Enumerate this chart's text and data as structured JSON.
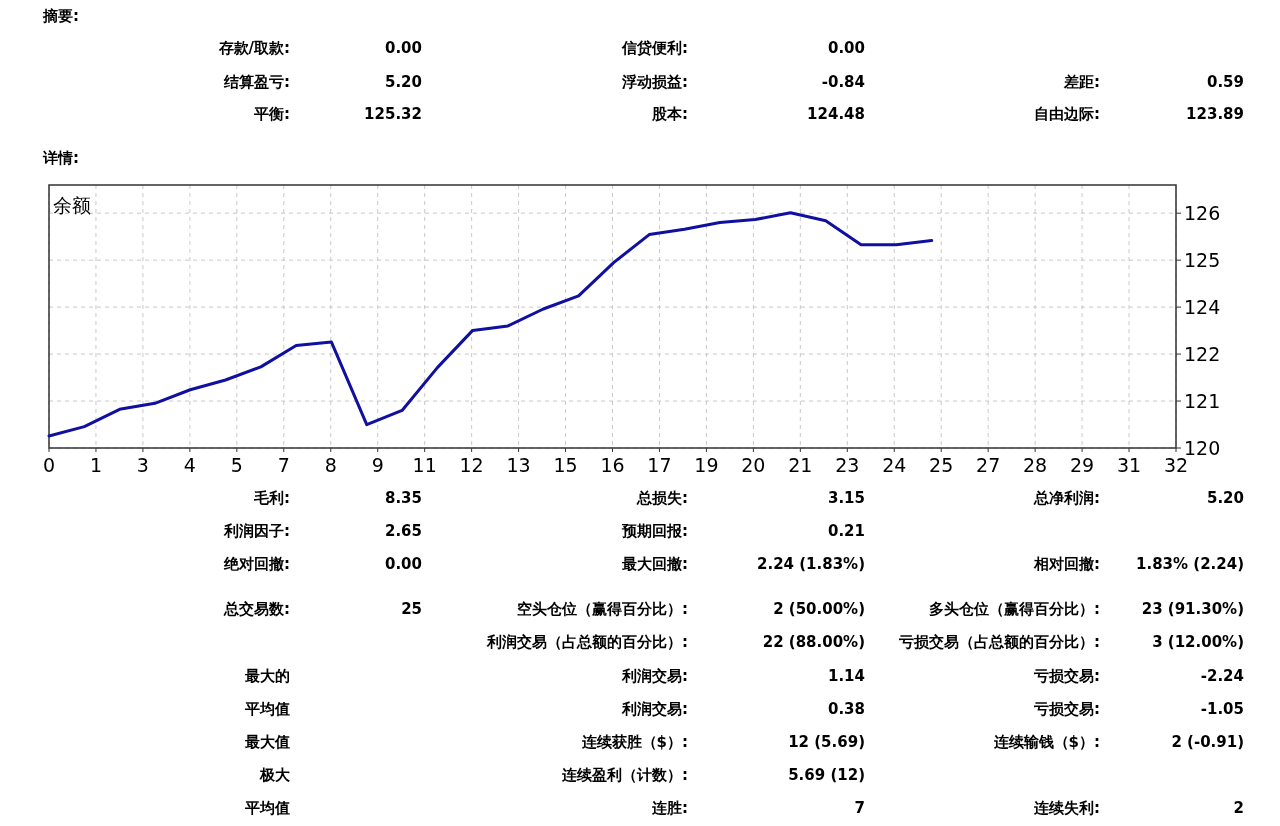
{
  "chart_data": {
    "type": "line",
    "title": "余额",
    "x": [
      0,
      1,
      2,
      3,
      4,
      5,
      6,
      7,
      8,
      9,
      10,
      11,
      12,
      13,
      14,
      15,
      16,
      17,
      18,
      19,
      20,
      21,
      22,
      23,
      24,
      25
    ],
    "series": [
      {
        "color": "#1010a0",
        "values": [
          120.12,
          120.37,
          120.83,
          120.99,
          121.35,
          121.61,
          121.96,
          122.53,
          122.62,
          120.42,
          120.8,
          121.94,
          122.93,
          123.05,
          123.5,
          123.85,
          124.74,
          125.48,
          125.62,
          125.8,
          125.88,
          126.06,
          125.85,
          125.21,
          125.21,
          125.32
        ]
      }
    ],
    "xlim": [
      0,
      31.92
    ],
    "xticks": [
      0,
      {
        "value": 1.33,
        "label": "1"
      },
      {
        "value": 2.66,
        "label": "3"
      },
      {
        "value": 3.99,
        "label": "4"
      },
      {
        "value": 5.32,
        "label": "5"
      },
      {
        "value": 6.65,
        "label": "7"
      },
      {
        "value": 7.98,
        "label": "8"
      },
      {
        "value": 9.31,
        "label": "9"
      },
      {
        "value": 10.64,
        "label": "11"
      },
      {
        "value": 11.97,
        "label": "12"
      },
      {
        "value": 13.3,
        "label": "13"
      },
      {
        "value": 14.63,
        "label": "15"
      },
      {
        "value": 15.96,
        "label": "16"
      },
      {
        "value": 17.29,
        "label": "17"
      },
      {
        "value": 18.62,
        "label": "19"
      },
      {
        "value": 19.95,
        "label": "20"
      },
      {
        "value": 21.28,
        "label": "21"
      },
      {
        "value": 22.61,
        "label": "23"
      },
      {
        "value": 23.94,
        "label": "24"
      },
      {
        "value": 25.27,
        "label": "25"
      },
      {
        "value": 26.6,
        "label": "27"
      },
      {
        "value": 27.93,
        "label": "28"
      },
      {
        "value": 29.26,
        "label": "29"
      },
      {
        "value": 30.59,
        "label": "31"
      },
      {
        "value": 31.92,
        "label": "32"
      }
    ],
    "ylim": [
      119.8,
      126.8
    ],
    "yticks": [
      {
        "value": 119.8,
        "label": "120"
      },
      {
        "value": 121.05,
        "label": "121"
      },
      {
        "value": 122.3,
        "label": "122"
      },
      {
        "value": 123.55,
        "label": "124"
      },
      {
        "value": 124.8,
        "label": "125"
      },
      {
        "value": 126.05,
        "label": "126"
      }
    ],
    "grid": true,
    "line_style": "solid",
    "marker": "none",
    "annotations": [
      "摘要:",
      "存款/取款:",
      "0.00",
      "信贷便利:",
      "0.00",
      "结算盈亏:",
      "5.20",
      "浮动损益:",
      "-0.84",
      "差距:",
      "0.59",
      "平衡:",
      "125.32",
      "股本:",
      "124.48",
      "自由边际:",
      "123.89",
      "详情:",
      "毛利:",
      "8.35",
      "总损失:",
      "3.15",
      "总净利润:",
      "5.20",
      "利润因子:",
      "2.65",
      "预期回报:",
      "0.21",
      "绝对回撤:",
      "0.00",
      "最大回撤:",
      "2.24 (1.83%)",
      "相对回撤:",
      "1.83% (2.24)",
      "总交易数:",
      "25",
      "空头仓位（赢得百分比）:",
      "2 (50.00%)",
      "多头仓位（赢得百分比）:",
      "23 (91.30%)",
      "利润交易（占总额的百分比）:",
      "22 (88.00%)",
      "亏损交易（占总额的百分比）:",
      "3 (12.00%)",
      "最大的",
      "利润交易:",
      "1.14",
      "亏损交易:",
      "-2.24",
      "平均值",
      "利润交易:",
      "0.38",
      "亏损交易:",
      "-1.05",
      "最大值",
      "连续获胜（$）:",
      "12 (5.69)",
      "连续输钱（$）:",
      "2 (-0.91)",
      "极大",
      "连续盈利（计数）:",
      "5.69 (12)",
      "平均值",
      "连胜:",
      "7",
      "连续失利:",
      "2"
    ]
  }
}
